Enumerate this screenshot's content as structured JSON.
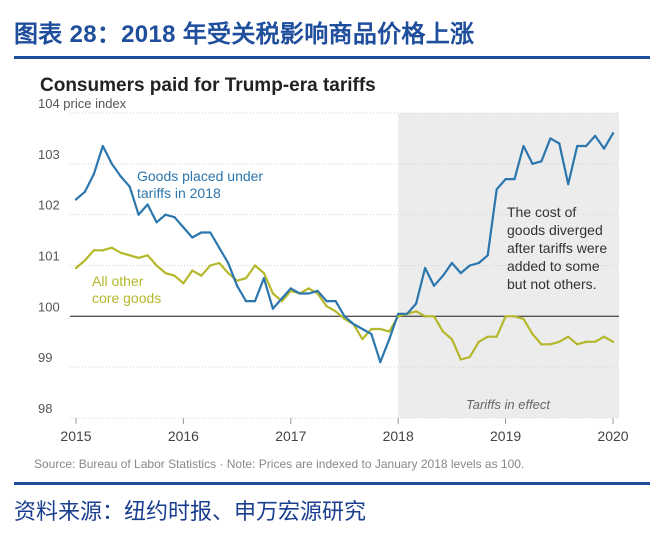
{
  "figure": {
    "title": "图表 28：2018 年受关税影响商品价格上涨",
    "source": "资料来源：纽约时报、申万宏源研究"
  },
  "colors": {
    "blue": "#2b76ad",
    "green": "#b5b82a",
    "shade": "#ececec",
    "grid": "#d3d3d3",
    "frame": "#1f4e9c"
  },
  "chart_data": {
    "type": "line",
    "title": "Consumers paid for Trump-era tariffs",
    "ylabel": "price index",
    "ylim": [
      98,
      104
    ],
    "xlim": [
      2015,
      2020
    ],
    "yticks": [
      98,
      99,
      100,
      101,
      102,
      103,
      104
    ],
    "ytick_labels": [
      "98",
      "99",
      "100",
      "101",
      "102",
      "103",
      "104 price index"
    ],
    "xticks": [
      2015,
      2016,
      2017,
      2018,
      2019,
      2020
    ],
    "xtick_labels": [
      "2015",
      "2016",
      "2017",
      "2018",
      "2019",
      "2020"
    ],
    "reference_line": 100,
    "shaded_region": {
      "start": 2018,
      "end": 2020.05,
      "label": "Tariffs in effect"
    },
    "annotation": [
      "The cost of",
      "goods diverged",
      "after tariffs were",
      "added to some",
      "but not others."
    ],
    "source_note": "Source: Bureau of Labor Statistics  ·  Note: Prices are indexed to January 2018 levels as 100.",
    "series": [
      {
        "name": "Goods placed under tariffs in 2018",
        "label_lines": [
          "Goods placed under",
          "tariffs in 2018"
        ],
        "color": "#2b76ad",
        "x": [
          2015.0,
          2015.083,
          2015.167,
          2015.25,
          2015.333,
          2015.417,
          2015.5,
          2015.583,
          2015.667,
          2015.75,
          2015.833,
          2015.917,
          2016.0,
          2016.083,
          2016.167,
          2016.25,
          2016.333,
          2016.417,
          2016.5,
          2016.583,
          2016.667,
          2016.75,
          2016.833,
          2016.917,
          2017.0,
          2017.083,
          2017.167,
          2017.25,
          2017.333,
          2017.417,
          2017.5,
          2017.583,
          2017.667,
          2017.75,
          2017.833,
          2017.917,
          2018.0,
          2018.083,
          2018.167,
          2018.25,
          2018.333,
          2018.417,
          2018.5,
          2018.583,
          2018.667,
          2018.75,
          2018.833,
          2018.917,
          2019.0,
          2019.083,
          2019.167,
          2019.25,
          2019.333,
          2019.417,
          2019.5,
          2019.583,
          2019.667,
          2019.75,
          2019.833,
          2019.917,
          2020.0
        ],
        "values": [
          102.3,
          102.45,
          102.8,
          103.35,
          103.0,
          102.75,
          102.55,
          102.0,
          102.2,
          101.85,
          102.0,
          101.95,
          101.75,
          101.55,
          101.65,
          101.65,
          101.35,
          101.05,
          100.6,
          100.3,
          100.3,
          100.75,
          100.15,
          100.35,
          100.55,
          100.45,
          100.45,
          100.5,
          100.3,
          100.3,
          100.0,
          99.85,
          99.75,
          99.65,
          99.1,
          99.55,
          100.05,
          100.05,
          100.25,
          100.95,
          100.6,
          100.8,
          101.05,
          100.85,
          101.0,
          101.05,
          101.2,
          102.5,
          102.7,
          102.7,
          103.35,
          103.0,
          103.05,
          103.5,
          103.4,
          102.6,
          103.35,
          103.35,
          103.55,
          103.3,
          103.6
        ]
      },
      {
        "name": "All other core goods",
        "label_lines": [
          "All other",
          "core goods"
        ],
        "color": "#b5b82a",
        "x": [
          2015.0,
          2015.083,
          2015.167,
          2015.25,
          2015.333,
          2015.417,
          2015.5,
          2015.583,
          2015.667,
          2015.75,
          2015.833,
          2015.917,
          2016.0,
          2016.083,
          2016.167,
          2016.25,
          2016.333,
          2016.417,
          2016.5,
          2016.583,
          2016.667,
          2016.75,
          2016.833,
          2016.917,
          2017.0,
          2017.083,
          2017.167,
          2017.25,
          2017.333,
          2017.417,
          2017.5,
          2017.583,
          2017.667,
          2017.75,
          2017.833,
          2017.917,
          2018.0,
          2018.083,
          2018.167,
          2018.25,
          2018.333,
          2018.417,
          2018.5,
          2018.583,
          2018.667,
          2018.75,
          2018.833,
          2018.917,
          2019.0,
          2019.083,
          2019.167,
          2019.25,
          2019.333,
          2019.417,
          2019.5,
          2019.583,
          2019.667,
          2019.75,
          2019.833,
          2019.917,
          2020.0
        ],
        "values": [
          100.95,
          101.1,
          101.3,
          101.3,
          101.35,
          101.25,
          101.2,
          101.15,
          101.2,
          101.0,
          100.85,
          100.8,
          100.65,
          100.9,
          100.8,
          101.0,
          101.05,
          100.85,
          100.7,
          100.75,
          101.0,
          100.85,
          100.45,
          100.3,
          100.5,
          100.45,
          100.55,
          100.45,
          100.2,
          100.1,
          99.95,
          99.85,
          99.55,
          99.75,
          99.75,
          99.7,
          100.0,
          100.05,
          100.1,
          100.0,
          100.0,
          99.7,
          99.55,
          99.15,
          99.2,
          99.5,
          99.6,
          99.6,
          100.0,
          100.0,
          99.95,
          99.65,
          99.45,
          99.45,
          99.5,
          99.6,
          99.45,
          99.5,
          99.5,
          99.6,
          99.5
        ]
      }
    ]
  }
}
